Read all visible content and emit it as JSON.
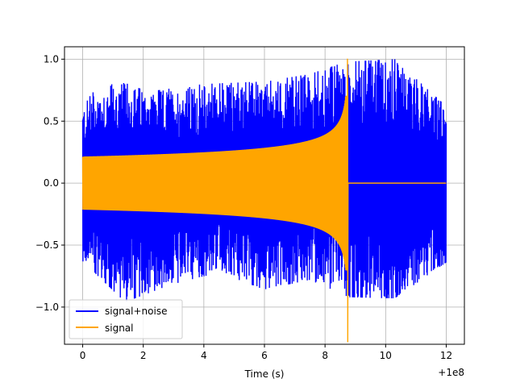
{
  "chart_data": {
    "type": "line",
    "title": "",
    "xlabel": "Time (s)",
    "ylabel": "",
    "x_offset_label": "+1e8",
    "xlim": [
      -0.6,
      12.6
    ],
    "ylim": [
      -1.3,
      1.1
    ],
    "x_ticks": [
      0,
      2,
      4,
      6,
      8,
      10,
      12
    ],
    "x_tick_labels": [
      "0",
      "2",
      "4",
      "6",
      "8",
      "10",
      "12"
    ],
    "y_ticks": [
      -1.0,
      -0.5,
      0.0,
      0.5,
      1.0
    ],
    "y_tick_labels": [
      "−1.0",
      "−0.5",
      "0.0",
      "0.5",
      "1.0"
    ],
    "grid": true,
    "legend_position": "lower-left",
    "series": [
      {
        "name": "signal+noise",
        "color": "#0000ff",
        "x_range": [
          0,
          12
        ],
        "upper_envelope": [
          [
            0,
            0.63
          ],
          [
            0.5,
            0.78
          ],
          [
            1.3,
            0.81
          ],
          [
            2.5,
            0.75
          ],
          [
            4.0,
            0.8
          ],
          [
            6.0,
            0.82
          ],
          [
            7.5,
            0.88
          ],
          [
            8.7,
            0.98
          ],
          [
            10.3,
            1.0
          ],
          [
            12.0,
            0.62
          ]
        ],
        "lower_envelope": [
          [
            0,
            -0.63
          ],
          [
            1.4,
            -0.96
          ],
          [
            2.9,
            -0.82
          ],
          [
            4.5,
            -0.72
          ],
          [
            6.0,
            -0.86
          ],
          [
            7.5,
            -0.78
          ],
          [
            8.7,
            -0.92
          ],
          [
            10.3,
            -0.93
          ],
          [
            12.0,
            -0.64
          ]
        ]
      },
      {
        "name": "signal",
        "color": "#ffa500",
        "x_range": [
          0,
          12
        ],
        "amplitude_start": 0.21,
        "chirp_end": 8.75,
        "peak_max": 1.0,
        "peak_min": -1.28,
        "after_value": 0.0
      }
    ]
  }
}
